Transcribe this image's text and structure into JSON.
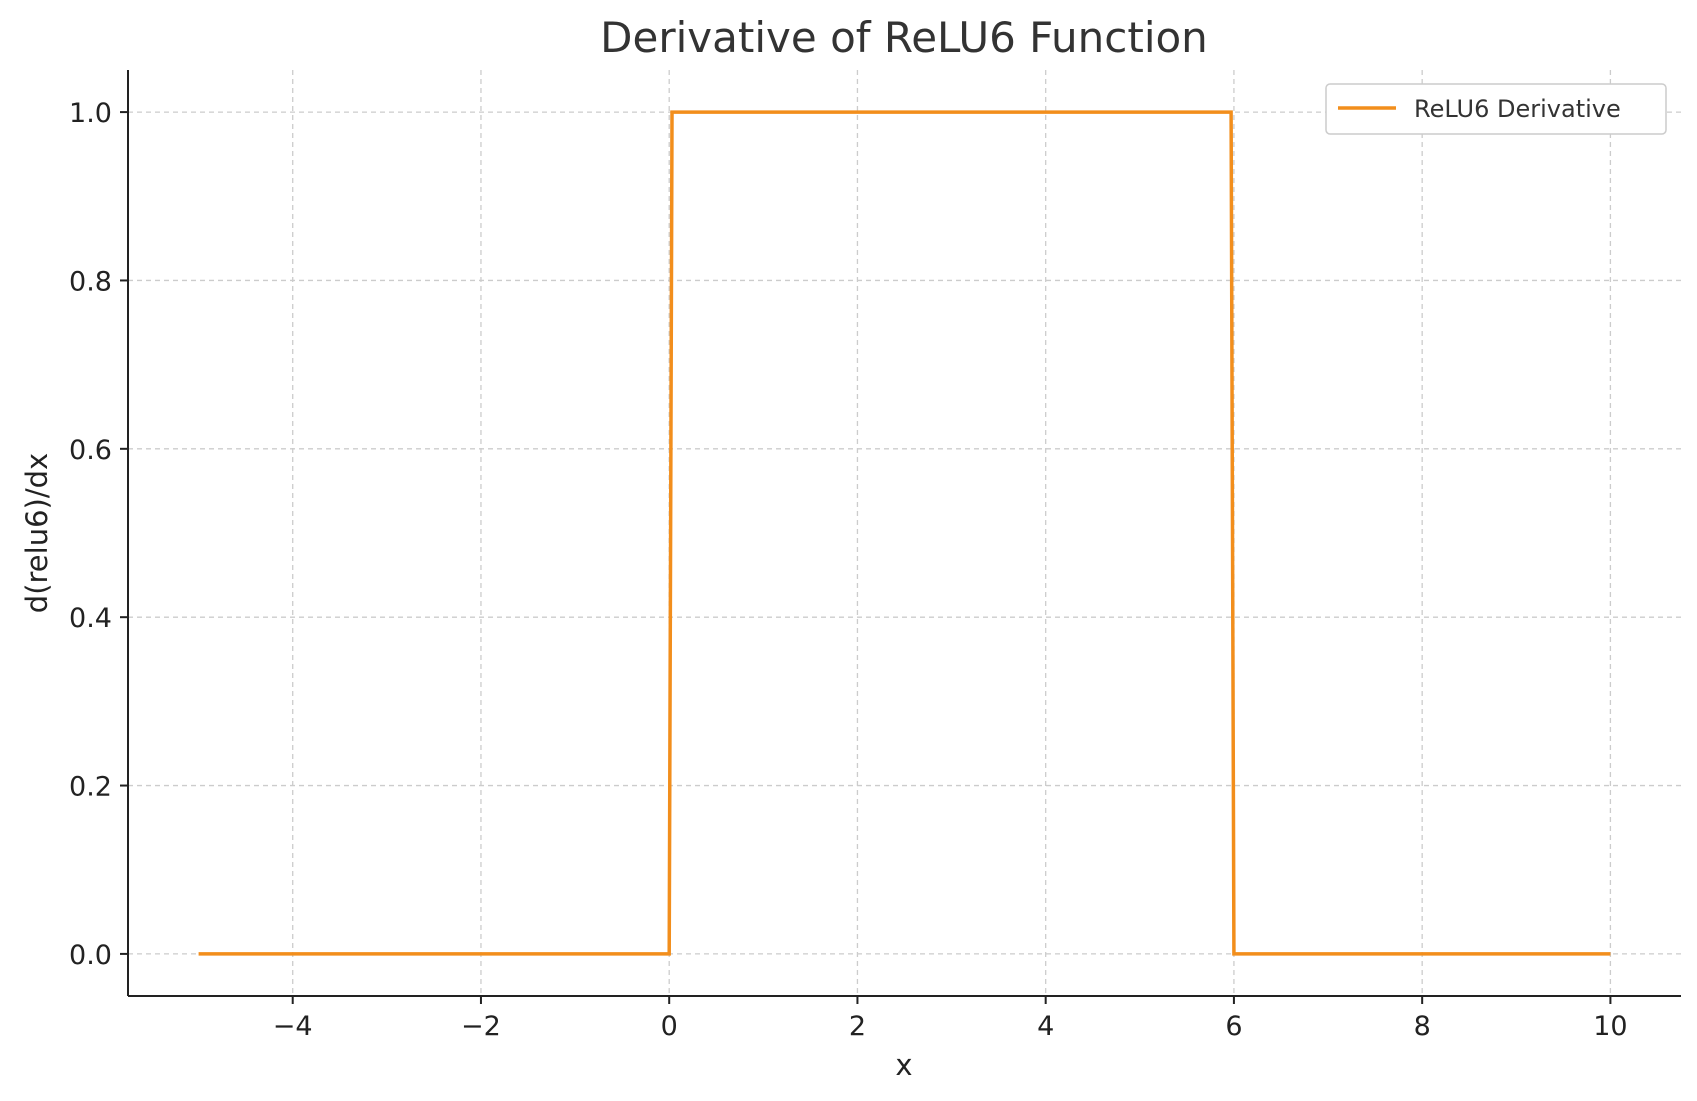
{
  "chart_data": {
    "type": "line",
    "title": "Derivative of ReLU6 Function",
    "xlabel": "x",
    "ylabel": "d(relu6)/dx",
    "xlim": [
      -5.75,
      10.75
    ],
    "ylim": [
      -0.05,
      1.05
    ],
    "x_ticks": [
      -4,
      -2,
      0,
      2,
      4,
      6,
      8,
      10
    ],
    "x_tick_labels": [
      "−4",
      "−2",
      "0",
      "2",
      "4",
      "6",
      "8",
      "10"
    ],
    "y_ticks": [
      0.0,
      0.2,
      0.4,
      0.6,
      0.8,
      1.0
    ],
    "y_tick_labels": [
      "0.0",
      "0.2",
      "0.4",
      "0.6",
      "0.8",
      "1.0"
    ],
    "grid": true,
    "legend_position": "top-right",
    "series": [
      {
        "name": "ReLU6 Derivative",
        "color": "#f28e1c",
        "x": [
          -5,
          0,
          0.03,
          5.97,
          6,
          10
        ],
        "y": [
          0,
          0,
          1,
          1,
          0,
          0
        ]
      }
    ]
  }
}
